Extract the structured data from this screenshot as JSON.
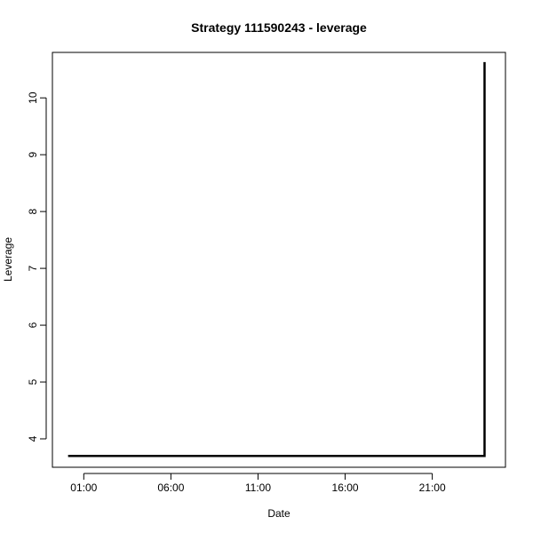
{
  "chart_data": {
    "type": "line",
    "title": "Strategy 111590243 - leverage",
    "xlabel": "Date",
    "ylabel": "Leverage",
    "x_ticks": [
      {
        "label": "01:00",
        "value": 1
      },
      {
        "label": "06:00",
        "value": 6
      },
      {
        "label": "11:00",
        "value": 11
      },
      {
        "label": "16:00",
        "value": 16
      },
      {
        "label": "21:00",
        "value": 21
      }
    ],
    "y_ticks": [
      {
        "label": "4",
        "value": 4
      },
      {
        "label": "5",
        "value": 5
      },
      {
        "label": "6",
        "value": 6
      },
      {
        "label": "7",
        "value": 7
      },
      {
        "label": "8",
        "value": 8
      },
      {
        "label": "9",
        "value": 9
      },
      {
        "label": "10",
        "value": 10
      }
    ],
    "xlim": [
      -0.8,
      25.2
    ],
    "ylim": [
      3.5,
      10.8
    ],
    "grid": false,
    "series": [
      {
        "color": "#000000",
        "points": [
          {
            "x": 0.1,
            "y": 3.7
          },
          {
            "x": 24.0,
            "y": 3.7
          },
          {
            "x": 24.0,
            "y": 10.63
          }
        ]
      }
    ]
  }
}
